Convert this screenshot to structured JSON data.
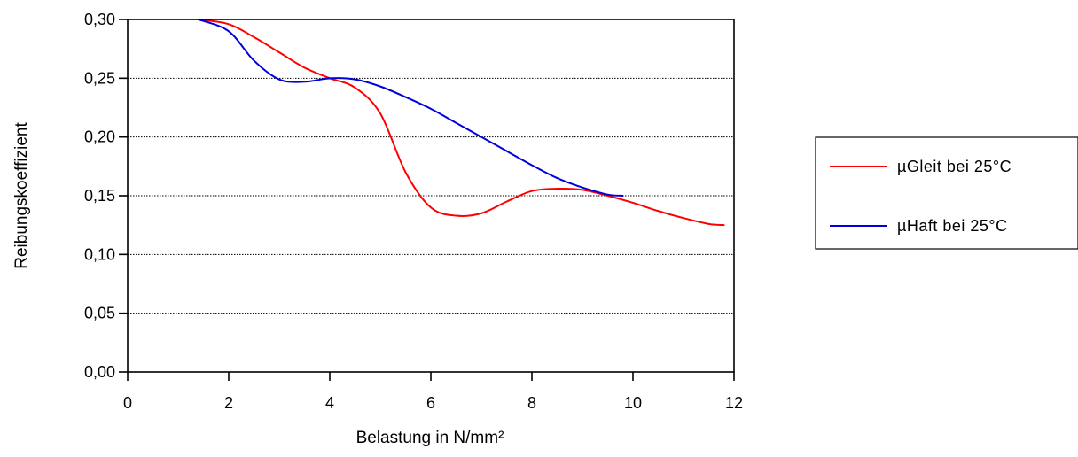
{
  "chart_data": {
    "type": "line",
    "title": "",
    "xlabel": "Belastung in N/mm²",
    "ylabel": "Reibungskoeffizient",
    "xlim": [
      0,
      12
    ],
    "ylim": [
      0.0,
      0.3
    ],
    "x_ticks": [
      0,
      2,
      4,
      6,
      8,
      10,
      12
    ],
    "x_tick_labels": [
      "0",
      "2",
      "4",
      "6",
      "8",
      "10",
      "12"
    ],
    "y_ticks": [
      0.0,
      0.05,
      0.1,
      0.15,
      0.2,
      0.25,
      0.3
    ],
    "y_tick_labels": [
      "0,00",
      "0,05",
      "0,10",
      "0,15",
      "0,20",
      "0,25",
      "0,30"
    ],
    "grid": "horizontal dotted",
    "legend_position": "right",
    "series": [
      {
        "name": "µGleit bei 25°C",
        "color": "#ff0000",
        "x": [
          1.4,
          2.0,
          2.5,
          3.0,
          3.5,
          4.0,
          4.5,
          5.0,
          5.5,
          6.0,
          6.5,
          7.0,
          7.5,
          8.0,
          8.5,
          9.0,
          9.5,
          10.0,
          10.5,
          11.0,
          11.5,
          11.8
        ],
        "y": [
          0.3,
          0.296,
          0.285,
          0.272,
          0.259,
          0.25,
          0.242,
          0.22,
          0.17,
          0.14,
          0.133,
          0.135,
          0.145,
          0.154,
          0.156,
          0.155,
          0.15,
          0.144,
          0.137,
          0.131,
          0.126,
          0.125
        ]
      },
      {
        "name": "µHaft bei 25°C",
        "color": "#0000dd",
        "x": [
          1.4,
          2.0,
          2.5,
          3.0,
          3.5,
          4.0,
          4.5,
          5.0,
          5.5,
          6.0,
          6.5,
          7.0,
          7.5,
          8.0,
          8.5,
          9.0,
          9.5,
          9.8
        ],
        "y": [
          0.3,
          0.29,
          0.265,
          0.249,
          0.247,
          0.25,
          0.249,
          0.243,
          0.234,
          0.224,
          0.212,
          0.2,
          0.188,
          0.176,
          0.165,
          0.157,
          0.151,
          0.15
        ]
      }
    ]
  }
}
